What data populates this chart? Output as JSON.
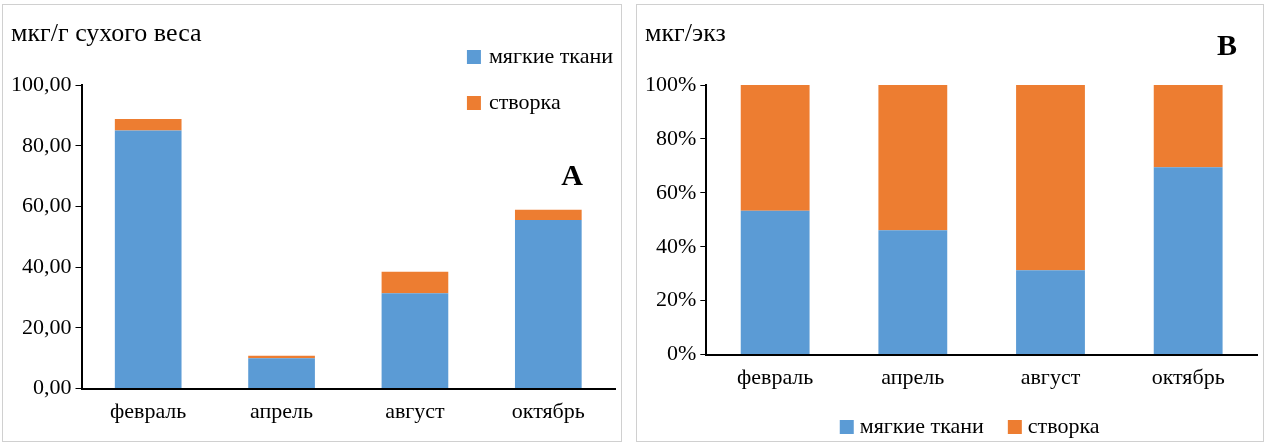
{
  "chart_data": [
    {
      "type": "bar",
      "stacked": true,
      "ylabel": "мкг/г сухого веса",
      "categories": [
        "февраль",
        "апрель",
        "август",
        "октябрь"
      ],
      "series": [
        {
          "name": "мягкие ткани",
          "color": "#5b9bd5",
          "values": [
            85.0,
            10.0,
            31.4,
            55.5
          ]
        },
        {
          "name": "створка",
          "color": "#ed7d31",
          "values": [
            3.8,
            0.8,
            7.1,
            3.4
          ]
        }
      ],
      "ylim": [
        0,
        100
      ],
      "yticks": [
        {
          "value": 0,
          "label": "0,00"
        },
        {
          "value": 20,
          "label": "20,00"
        },
        {
          "value": 40,
          "label": "40,00"
        },
        {
          "value": 60,
          "label": "60,00"
        },
        {
          "value": 80,
          "label": "80,00"
        },
        {
          "value": 100,
          "label": "100,00"
        }
      ],
      "grid": false,
      "legend": "top right",
      "annotations": [
        "A"
      ]
    },
    {
      "type": "bar",
      "stacked": true,
      "ylabel": "мкг/экз",
      "categories": [
        "февраль",
        "апрель",
        "август",
        "октябрь"
      ],
      "series": [
        {
          "name": "мягкие ткани",
          "color": "#5b9bd5",
          "values": [
            53.4,
            46.1,
            31.3,
            69.5
          ]
        },
        {
          "name": "створка",
          "color": "#ed7d31",
          "values": [
            46.6,
            53.9,
            68.7,
            30.5
          ]
        }
      ],
      "ylim": [
        0,
        100
      ],
      "yticks": [
        {
          "value": 0,
          "label": "0%"
        },
        {
          "value": 20,
          "label": "20%"
        },
        {
          "value": 40,
          "label": "40%"
        },
        {
          "value": 60,
          "label": "60%"
        },
        {
          "value": 80,
          "label": "80%"
        },
        {
          "value": 100,
          "label": "100%"
        }
      ],
      "grid": false,
      "legend": "bottom",
      "annotations": [
        "B"
      ]
    }
  ]
}
